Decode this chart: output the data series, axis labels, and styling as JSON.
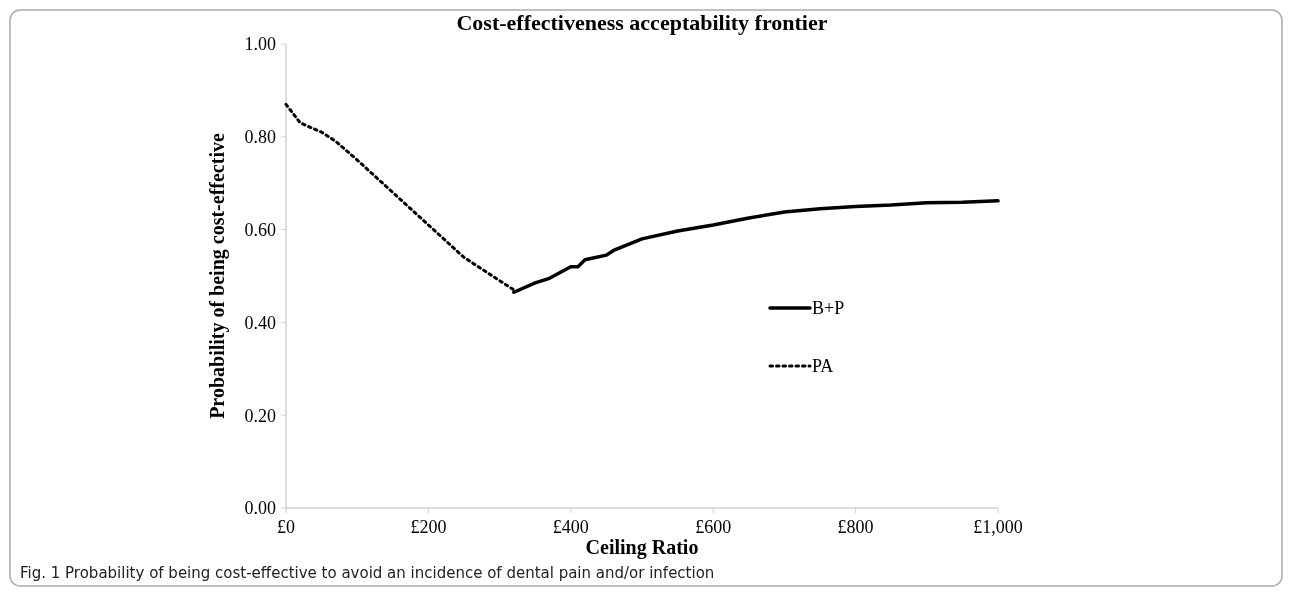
{
  "chart_data": {
    "type": "line",
    "title": "Cost-effectiveness acceptability frontier",
    "xlabel": "Ceiling Ratio",
    "ylabel": "Probability of being cost-effective",
    "annotations": [
      "Fig. 1 Probability of being cost-effective to avoid an incidence of dental pain and/or infection"
    ],
    "xlim": [
      0,
      1000
    ],
    "xticks": [
      {
        "value": 0,
        "label": "£0"
      },
      {
        "value": 200,
        "label": "£200"
      },
      {
        "value": 400,
        "label": "£400"
      },
      {
        "value": 600,
        "label": "£600"
      },
      {
        "value": 800,
        "label": "£800"
      },
      {
        "value": 1000,
        "label": "£1,000"
      }
    ],
    "ylim": [
      0,
      1
    ],
    "yticks": [
      {
        "value": 0,
        "label": "0.00"
      },
      {
        "value": 0.2,
        "label": "0.20"
      },
      {
        "value": 0.4,
        "label": "0.40"
      },
      {
        "value": 0.6,
        "label": "0.60"
      },
      {
        "value": 0.8,
        "label": "0.80"
      },
      {
        "value": 1,
        "label": "1.00"
      }
    ],
    "grid": false,
    "legend": "right",
    "series": [
      {
        "name": "B+P",
        "color": "#000000",
        "line_style": "solid",
        "x": [
          320,
          350,
          370,
          400,
          410,
          420,
          450,
          460,
          500,
          550,
          600,
          650,
          700,
          750,
          800,
          850,
          900,
          950,
          1000
        ],
        "values": [
          0.465,
          0.485,
          0.495,
          0.52,
          0.52,
          0.535,
          0.545,
          0.555,
          0.58,
          0.597,
          0.61,
          0.625,
          0.638,
          0.645,
          0.65,
          0.653,
          0.658,
          0.659,
          0.662
        ]
      },
      {
        "name": "PA",
        "color": "#000000",
        "line_style": "dotted",
        "x": [
          0,
          20,
          50,
          70,
          100,
          150,
          200,
          250,
          300,
          320
        ],
        "values": [
          0.87,
          0.83,
          0.81,
          0.79,
          0.75,
          0.68,
          0.61,
          0.54,
          0.49,
          0.47
        ]
      }
    ]
  }
}
